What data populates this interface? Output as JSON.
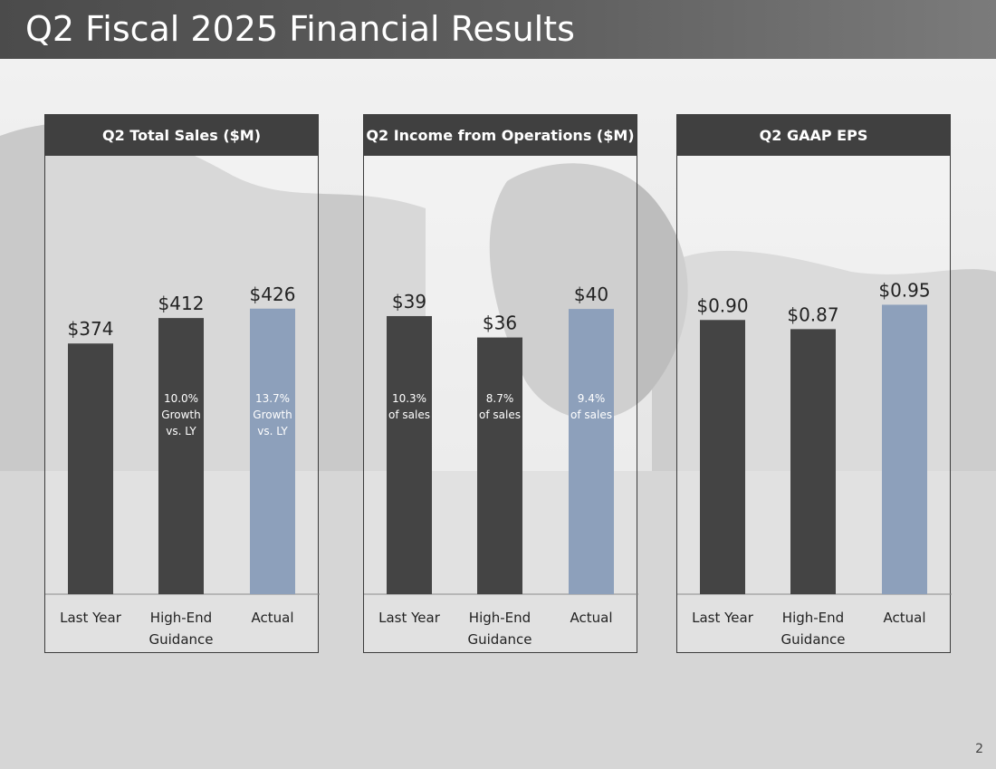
{
  "title": "Q2 Fiscal 2025 Financial Results",
  "page_number": "2",
  "colors": {
    "dark_bar": "#444444",
    "accent_bar": "#8da0bb",
    "header": "#404040"
  },
  "chart_data": [
    {
      "type": "bar",
      "title": "Q2 Total Sales ($M)",
      "categories": [
        [
          "Last Year"
        ],
        [
          "High-End",
          "Guidance"
        ],
        [
          "Actual"
        ]
      ],
      "values": [
        374,
        412,
        426
      ],
      "value_labels": [
        "$374",
        "$412",
        "$426"
      ],
      "annotations": [
        [],
        [
          "10.0%",
          "Growth",
          "vs. LY"
        ],
        [
          "13.7%",
          "Growth",
          "vs. LY"
        ]
      ],
      "ylim": [
        0,
        500
      ],
      "xlabel": "",
      "ylabel": ""
    },
    {
      "type": "bar",
      "title": "Q2 Income from Operations ($M)",
      "categories": [
        [
          "Last Year"
        ],
        [
          "High-End",
          "Guidance"
        ],
        [
          "Actual"
        ]
      ],
      "values": [
        39,
        36,
        40
      ],
      "value_labels": [
        "$39",
        "$36",
        "$40"
      ],
      "annotations": [
        [
          "10.3%",
          "of sales"
        ],
        [
          "8.7%",
          "of sales"
        ],
        [
          "9.4%",
          "of sales"
        ]
      ],
      "ylim": [
        0,
        47
      ],
      "xlabel": "",
      "ylabel": ""
    },
    {
      "type": "bar",
      "title": "Q2 GAAP EPS",
      "categories": [
        [
          "Last Year"
        ],
        [
          "High-End",
          "Guidance"
        ],
        [
          "Actual"
        ]
      ],
      "values": [
        0.9,
        0.87,
        0.95
      ],
      "value_labels": [
        "$0.90",
        "$0.87",
        "$0.95"
      ],
      "annotations": [
        [],
        [],
        []
      ],
      "ylim": [
        0,
        1.1
      ],
      "xlabel": "",
      "ylabel": ""
    }
  ]
}
